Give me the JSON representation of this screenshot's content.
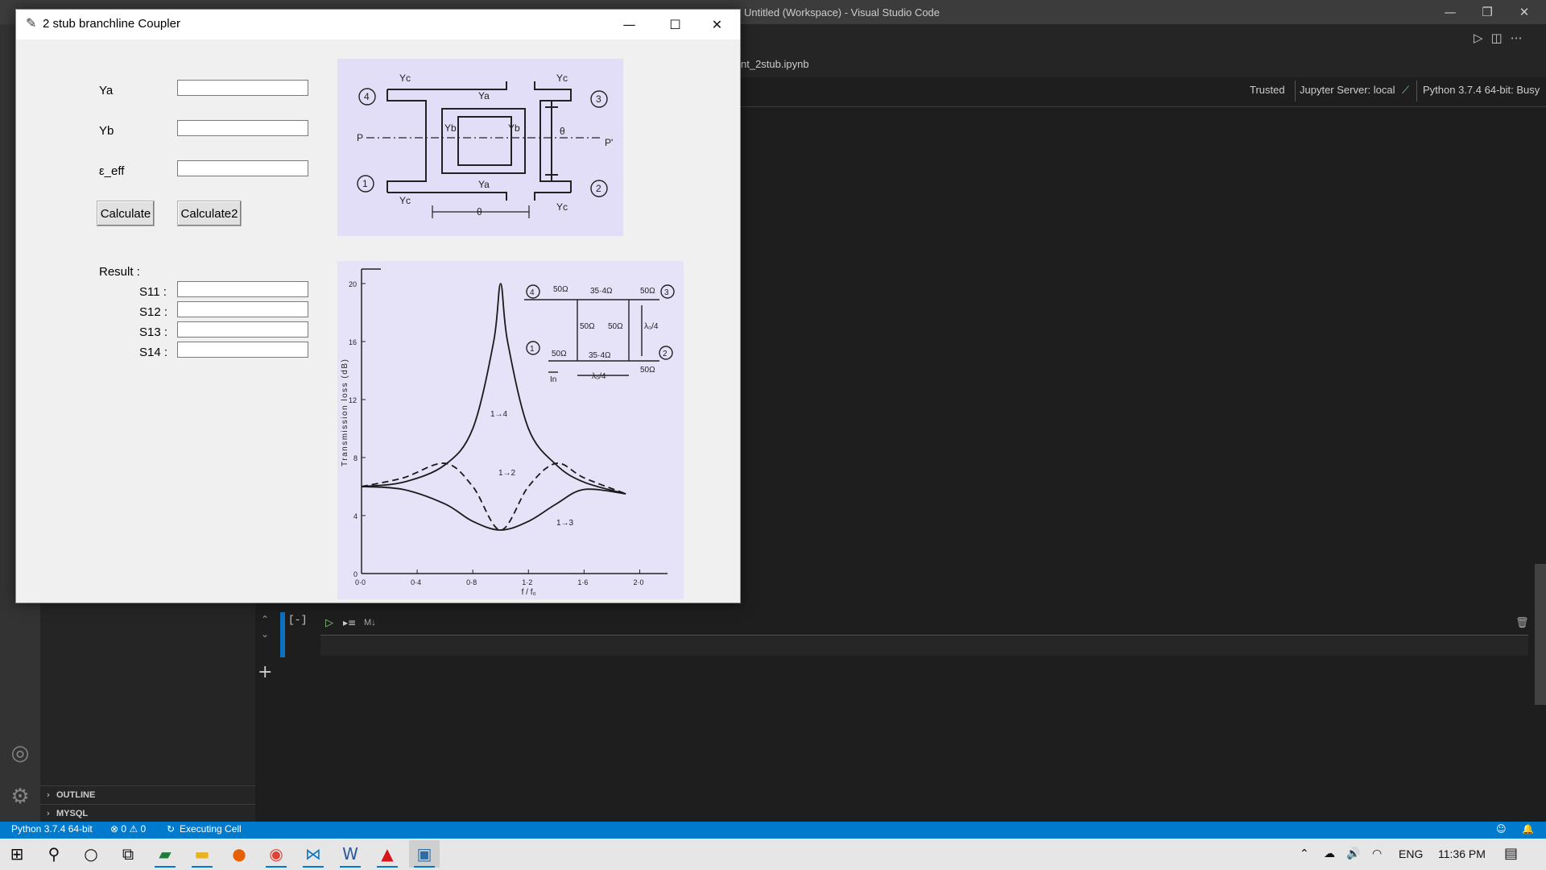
{
  "vscode": {
    "window_title": "Untitled (Workspace) - Visual Studio Code",
    "file_tab": "nt_2stub.ipynb",
    "notebook_status": {
      "trusted": "Trusted",
      "jupyter_server": "Jupyter Server: local",
      "kernel": "Python 3.7.4 64-bit: Busy"
    },
    "cell": {
      "execution_count": "[-]",
      "type_label": "M↓"
    },
    "sidebar_sections": [
      "OUTLINE",
      "MYSQL"
    ],
    "statusbar": {
      "interpreter": "Python 3.7.4 64-bit",
      "problems": "⊗ 0 ⚠ 0",
      "executing": "Executing Cell"
    }
  },
  "taskbar": {
    "language": "ENG",
    "clock": "11:36 PM"
  },
  "app": {
    "title": "2 stub branchline Coupler",
    "inputs": [
      {
        "label": "Ya",
        "value": ""
      },
      {
        "label": "Yb",
        "value": ""
      },
      {
        "label": "ε_eff",
        "value": ""
      }
    ],
    "buttons": {
      "calculate": "Calculate",
      "calculate2": "Calculate2"
    },
    "result_label": "Result :",
    "results": [
      {
        "label": "S11 :",
        "value": ""
      },
      {
        "label": "S12 :",
        "value": ""
      },
      {
        "label": "S13 :",
        "value": ""
      },
      {
        "label": "S14 :",
        "value": ""
      }
    ],
    "schematic_labels": {
      "ya": "Ya",
      "yb": "Yb",
      "yc": "Yc",
      "theta": "θ",
      "p": "P",
      "p_prime": "P'",
      "ports": [
        "1",
        "2",
        "3",
        "4"
      ]
    }
  },
  "chart_data": {
    "type": "line",
    "xlabel": "f / f₀",
    "ylabel": "Transmission loss (dB)",
    "xlim": [
      0.0,
      2.2
    ],
    "ylim": [
      0,
      21
    ],
    "x_ticks": [
      "0·0",
      "0·4",
      "0·8",
      "1·2",
      "1·6",
      "2·0"
    ],
    "y_ticks": [
      "0",
      "4",
      "8",
      "12",
      "16",
      "20"
    ],
    "series": [
      {
        "name": "1→4",
        "style": "solid",
        "x": [
          0.0,
          0.3,
          0.6,
          0.8,
          0.95,
          1.0,
          1.05,
          1.2,
          1.4,
          1.6,
          1.9
        ],
        "values": [
          6,
          6.3,
          7.5,
          10,
          16,
          20,
          16,
          10,
          7.5,
          6.3,
          5.5
        ]
      },
      {
        "name": "1→2",
        "style": "dashed",
        "x": [
          0.0,
          0.3,
          0.6,
          0.8,
          1.0,
          1.2,
          1.4,
          1.6,
          1.9
        ],
        "values": [
          6,
          6.6,
          7.6,
          6,
          3,
          6,
          7.6,
          6.6,
          5.5
        ]
      },
      {
        "name": "1→3",
        "style": "solid",
        "x": [
          0.0,
          0.3,
          0.6,
          0.8,
          1.0,
          1.2,
          1.4,
          1.6,
          1.9
        ],
        "values": [
          6,
          5.8,
          4.8,
          3.6,
          3,
          3.6,
          4.8,
          5.8,
          5.5
        ]
      }
    ],
    "inset_labels": [
      "50Ω",
      "35·4Ω",
      "50Ω",
      "50Ω",
      "50Ω",
      "λ₀/4",
      "50Ω",
      "35·4Ω",
      "50Ω",
      "In",
      "λ₀/4"
    ],
    "port_labels": [
      "1",
      "2",
      "3",
      "4"
    ],
    "curve_labels": [
      "1→4",
      "1→2",
      "1→3"
    ]
  }
}
